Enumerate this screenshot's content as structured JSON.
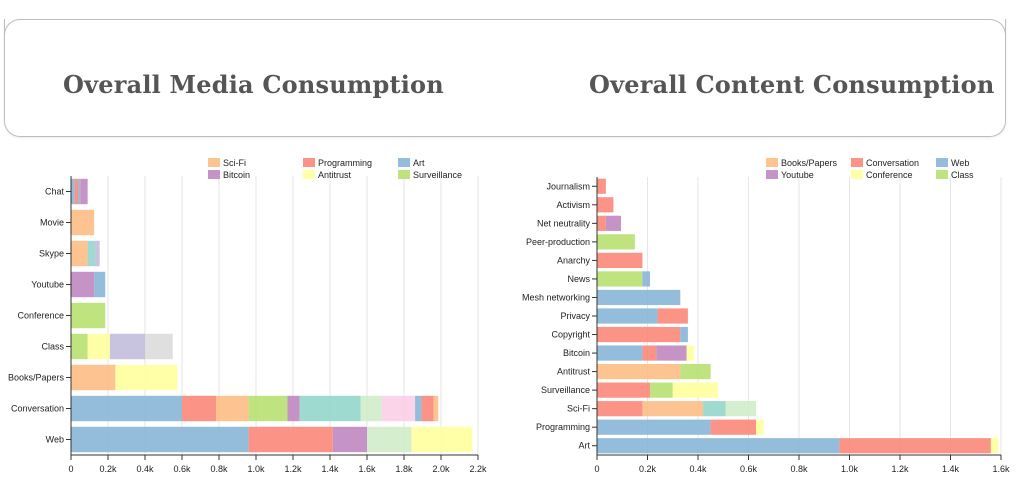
{
  "header": {
    "left_title": "Overall Media Consumption",
    "right_title": "Overall Content Consumption"
  },
  "chart_data": [
    {
      "type": "bar",
      "orientation": "horizontal",
      "stacked": true,
      "title": "Overall Media Consumption",
      "legend_position": "top-right",
      "grid": true,
      "xlim": [
        0,
        2200
      ],
      "x_ticks": [
        "0",
        "0.2k",
        "0.4k",
        "0.6k",
        "0.8k",
        "1.0k",
        "1.2k",
        "1.4k",
        "1.6k",
        "1.8k",
        "2.0k",
        "2.2k"
      ],
      "categories": [
        "Chat",
        "Movie",
        "Skype",
        "Youtube",
        "Conference",
        "Class",
        "Books/Papers",
        "Conversation",
        "Web"
      ],
      "legend": [
        {
          "name": "Sci-Fi",
          "color": "#fdb97d"
        },
        {
          "name": "Programming",
          "color": "#fb8072"
        },
        {
          "name": "Art",
          "color": "#80b1d3"
        },
        {
          "name": "Bitcoin",
          "color": "#bc80bd"
        },
        {
          "name": "Antitrust",
          "color": "#ffff99"
        },
        {
          "name": "Surveillance",
          "color": "#b3de69"
        }
      ],
      "stacks": [
        [
          {
            "v": 20,
            "c": "#80b1d3"
          },
          {
            "v": 20,
            "c": "#fb8072"
          },
          {
            "v": 10,
            "c": "#80b1d3"
          },
          {
            "v": 40,
            "c": "#bc80bd"
          }
        ],
        [
          {
            "v": 125,
            "c": "#fdb97d"
          }
        ],
        [
          {
            "v": 90,
            "c": "#fdb97d"
          },
          {
            "v": 40,
            "c": "#8dd3c7"
          },
          {
            "v": 25,
            "c": "#bebada"
          }
        ],
        [
          {
            "v": 125,
            "c": "#bc80bd"
          },
          {
            "v": 60,
            "c": "#80b1d3"
          }
        ],
        [
          {
            "v": 185,
            "c": "#b3de69"
          }
        ],
        [
          {
            "v": 90,
            "c": "#b3de69"
          },
          {
            "v": 120,
            "c": "#ffff99"
          },
          {
            "v": 190,
            "c": "#bebada"
          },
          {
            "v": 150,
            "c": "#d9d9d9"
          }
        ],
        [
          {
            "v": 240,
            "c": "#fdb97d"
          },
          {
            "v": 335,
            "c": "#ffff99"
          }
        ],
        [
          {
            "v": 600,
            "c": "#80b1d3"
          },
          {
            "v": 185,
            "c": "#fb8072"
          },
          {
            "v": 175,
            "c": "#fdb97d"
          },
          {
            "v": 210,
            "c": "#b3de69"
          },
          {
            "v": 65,
            "c": "#bc80bd"
          },
          {
            "v": 330,
            "c": "#8dd3c7"
          },
          {
            "v": 115,
            "c": "#ccebc5"
          },
          {
            "v": 180,
            "c": "#fccde5"
          },
          {
            "v": 35,
            "c": "#80b1d3"
          },
          {
            "v": 65,
            "c": "#fb8072"
          },
          {
            "v": 25,
            "c": "#fdb97d"
          }
        ],
        [
          {
            "v": 960,
            "c": "#80b1d3"
          },
          {
            "v": 455,
            "c": "#fb8072"
          },
          {
            "v": 185,
            "c": "#bc80bd"
          },
          {
            "v": 240,
            "c": "#ccebc5"
          },
          {
            "v": 330,
            "c": "#ffff99"
          }
        ]
      ]
    },
    {
      "type": "bar",
      "orientation": "horizontal",
      "stacked": true,
      "title": "Overall Content Consumption",
      "legend_position": "top-right",
      "grid": true,
      "xlim": [
        0,
        1600
      ],
      "x_ticks": [
        "0",
        "0.2k",
        "0.4k",
        "0.6k",
        "0.8k",
        "1.0k",
        "1.2k",
        "1.4k",
        "1.6k"
      ],
      "categories": [
        "Journalism",
        "Activism",
        "Net neutrality",
        "Peer-production",
        "Anarchy",
        "News",
        "Mesh networking",
        "Privacy",
        "Copyright",
        "Bitcoin",
        "Antitrust",
        "Surveillance",
        "Sci-Fi",
        "Programming",
        "Art"
      ],
      "legend": [
        {
          "name": "Books/Papers",
          "color": "#fdb97d"
        },
        {
          "name": "Conversation",
          "color": "#fb8072"
        },
        {
          "name": "Web",
          "color": "#80b1d3"
        },
        {
          "name": "Youtube",
          "color": "#bc80bd"
        },
        {
          "name": "Conference",
          "color": "#ffff99"
        },
        {
          "name": "Class",
          "color": "#b3de69"
        }
      ],
      "stacks": [
        [
          {
            "v": 35,
            "c": "#fb8072"
          }
        ],
        [
          {
            "v": 65,
            "c": "#fb8072"
          }
        ],
        [
          {
            "v": 35,
            "c": "#fb8072"
          },
          {
            "v": 60,
            "c": "#bc80bd"
          }
        ],
        [
          {
            "v": 150,
            "c": "#b3de69"
          }
        ],
        [
          {
            "v": 180,
            "c": "#fb8072"
          }
        ],
        [
          {
            "v": 180,
            "c": "#b3de69"
          },
          {
            "v": 30,
            "c": "#80b1d3"
          }
        ],
        [
          {
            "v": 330,
            "c": "#80b1d3"
          }
        ],
        [
          {
            "v": 240,
            "c": "#80b1d3"
          },
          {
            "v": 120,
            "c": "#fb8072"
          }
        ],
        [
          {
            "v": 330,
            "c": "#fb8072"
          },
          {
            "v": 30,
            "c": "#80b1d3"
          }
        ],
        [
          {
            "v": 180,
            "c": "#80b1d3"
          },
          {
            "v": 55,
            "c": "#fb8072"
          },
          {
            "v": 120,
            "c": "#bc80bd"
          },
          {
            "v": 30,
            "c": "#ffff99"
          }
        ],
        [
          {
            "v": 330,
            "c": "#fdb97d"
          },
          {
            "v": 120,
            "c": "#b3de69"
          }
        ],
        [
          {
            "v": 210,
            "c": "#fb8072"
          },
          {
            "v": 90,
            "c": "#b3de69"
          },
          {
            "v": 180,
            "c": "#ffff99"
          }
        ],
        [
          {
            "v": 180,
            "c": "#fb8072"
          },
          {
            "v": 240,
            "c": "#fdb97d"
          },
          {
            "v": 90,
            "c": "#8dd3c7"
          },
          {
            "v": 120,
            "c": "#ccebc5"
          }
        ],
        [
          {
            "v": 450,
            "c": "#80b1d3"
          },
          {
            "v": 180,
            "c": "#fb8072"
          },
          {
            "v": 30,
            "c": "#ffff99"
          }
        ],
        [
          {
            "v": 960,
            "c": "#80b1d3"
          },
          {
            "v": 600,
            "c": "#fb8072"
          },
          {
            "v": 30,
            "c": "#ffff99"
          }
        ]
      ]
    }
  ]
}
